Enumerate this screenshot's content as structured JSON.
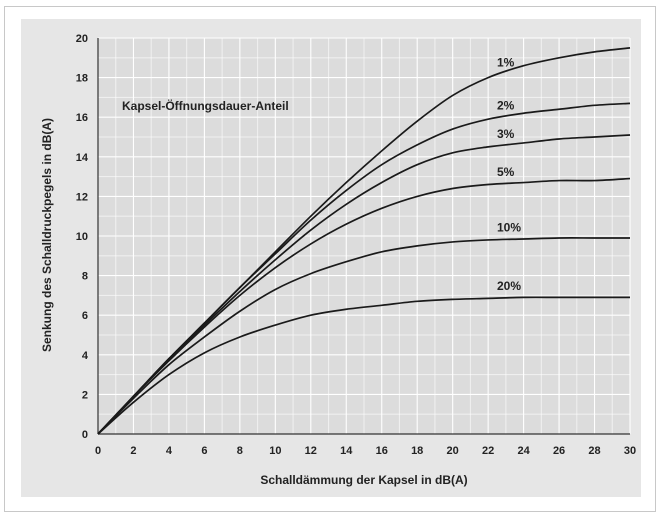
{
  "chart_data": {
    "type": "line",
    "title": "",
    "xlabel": "Schalldämmung der Kapsel in dB(A)",
    "ylabel": "Senkung des Schalldruckpegels in dB(A)",
    "legend_title": "Kapsel-Öffnungsdauer-Anteil",
    "xlim": [
      0,
      30
    ],
    "ylim": [
      0,
      20
    ],
    "x_ticks": [
      0,
      2,
      4,
      6,
      8,
      10,
      12,
      14,
      16,
      18,
      20,
      22,
      24,
      26,
      28,
      30
    ],
    "y_ticks": [
      0,
      2,
      4,
      6,
      8,
      10,
      12,
      14,
      16,
      18,
      20
    ],
    "x_tick_labels": [
      "0",
      "2",
      "4",
      "6",
      "8",
      "10",
      "12",
      "14",
      "16",
      "18",
      "20",
      "22",
      "24",
      "26",
      "28",
      "30"
    ],
    "y_tick_labels": [
      "0",
      "2",
      "4",
      "6",
      "8",
      "10",
      "12",
      "14",
      "16",
      "18",
      "20"
    ],
    "grid": true,
    "x": [
      0,
      2,
      4,
      6,
      8,
      10,
      12,
      14,
      16,
      18,
      20,
      22,
      24,
      26,
      28,
      30
    ],
    "series": [
      {
        "name": "1%",
        "values": [
          0,
          1.9,
          3.8,
          5.6,
          7.4,
          9.2,
          11.0,
          12.7,
          14.3,
          15.8,
          17.1,
          18.0,
          18.6,
          19.0,
          19.3,
          19.5
        ]
      },
      {
        "name": "2%",
        "values": [
          0,
          1.9,
          3.8,
          5.6,
          7.4,
          9.1,
          10.8,
          12.3,
          13.6,
          14.6,
          15.4,
          15.9,
          16.2,
          16.4,
          16.6,
          16.7
        ]
      },
      {
        "name": "3%",
        "values": [
          0,
          1.9,
          3.8,
          5.5,
          7.2,
          8.8,
          10.3,
          11.6,
          12.7,
          13.6,
          14.2,
          14.5,
          14.7,
          14.9,
          15.0,
          15.1
        ]
      },
      {
        "name": "5%",
        "values": [
          0,
          1.9,
          3.7,
          5.4,
          7.0,
          8.4,
          9.6,
          10.6,
          11.4,
          12.0,
          12.4,
          12.6,
          12.7,
          12.8,
          12.8,
          12.9
        ]
      },
      {
        "name": "10%",
        "values": [
          0,
          1.8,
          3.5,
          4.9,
          6.2,
          7.3,
          8.1,
          8.7,
          9.2,
          9.5,
          9.7,
          9.8,
          9.85,
          9.9,
          9.9,
          9.9
        ]
      },
      {
        "name": "20%",
        "values": [
          0,
          1.6,
          3.0,
          4.1,
          4.9,
          5.5,
          6.0,
          6.3,
          6.5,
          6.7,
          6.8,
          6.85,
          6.9,
          6.9,
          6.9,
          6.9
        ]
      }
    ]
  }
}
